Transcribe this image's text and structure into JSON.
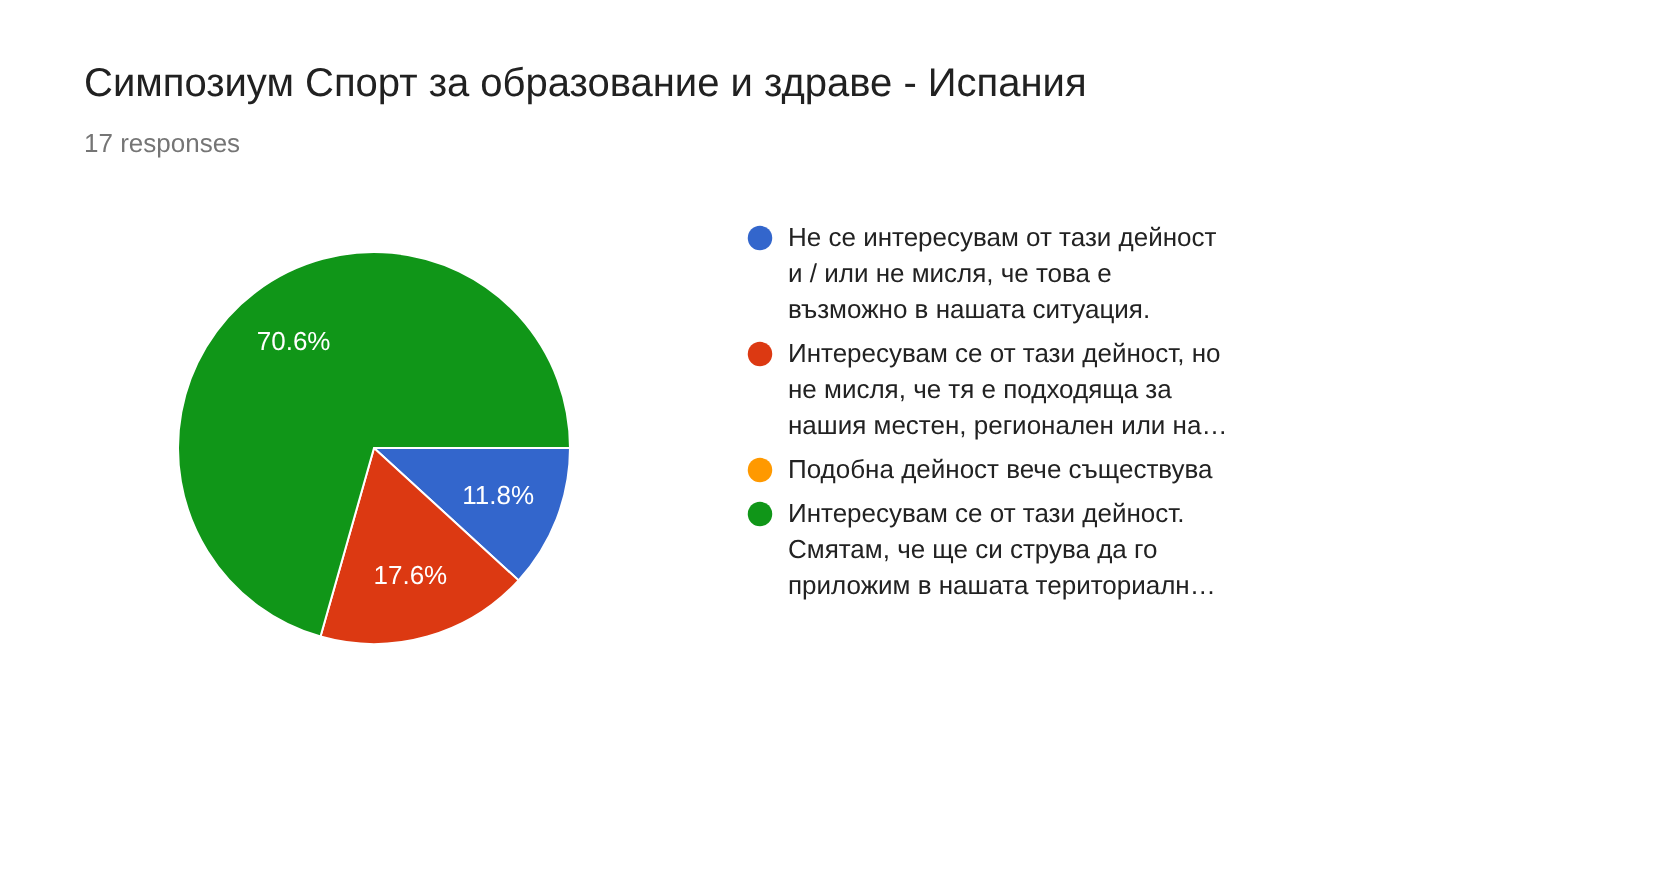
{
  "chart_data": {
    "type": "pie",
    "title": "Симпозиум Спорт за образование и здраве - Испания",
    "subtitle": "17 responses",
    "categories": [
      "Не се интересувам от тази дейност и / или не мисля, че това е възможно в нашата ситуация.",
      "Интересувам се от тази дейност, но не мисля, че тя е подходяща за нашия местен, регионален или на…",
      "Подобна дейност вече съществува",
      "Интересувам се от тази дейност. Смятам, че ще си струва да го приложим в нашата териториалн…"
    ],
    "values": [
      11.8,
      17.6,
      0,
      70.6
    ],
    "colors": [
      "#3366cc",
      "#dc3912",
      "#ff9900",
      "#109618"
    ],
    "value_labels": [
      "11.8%",
      "17.6%",
      null,
      "70.6%"
    ],
    "legend": "right"
  }
}
